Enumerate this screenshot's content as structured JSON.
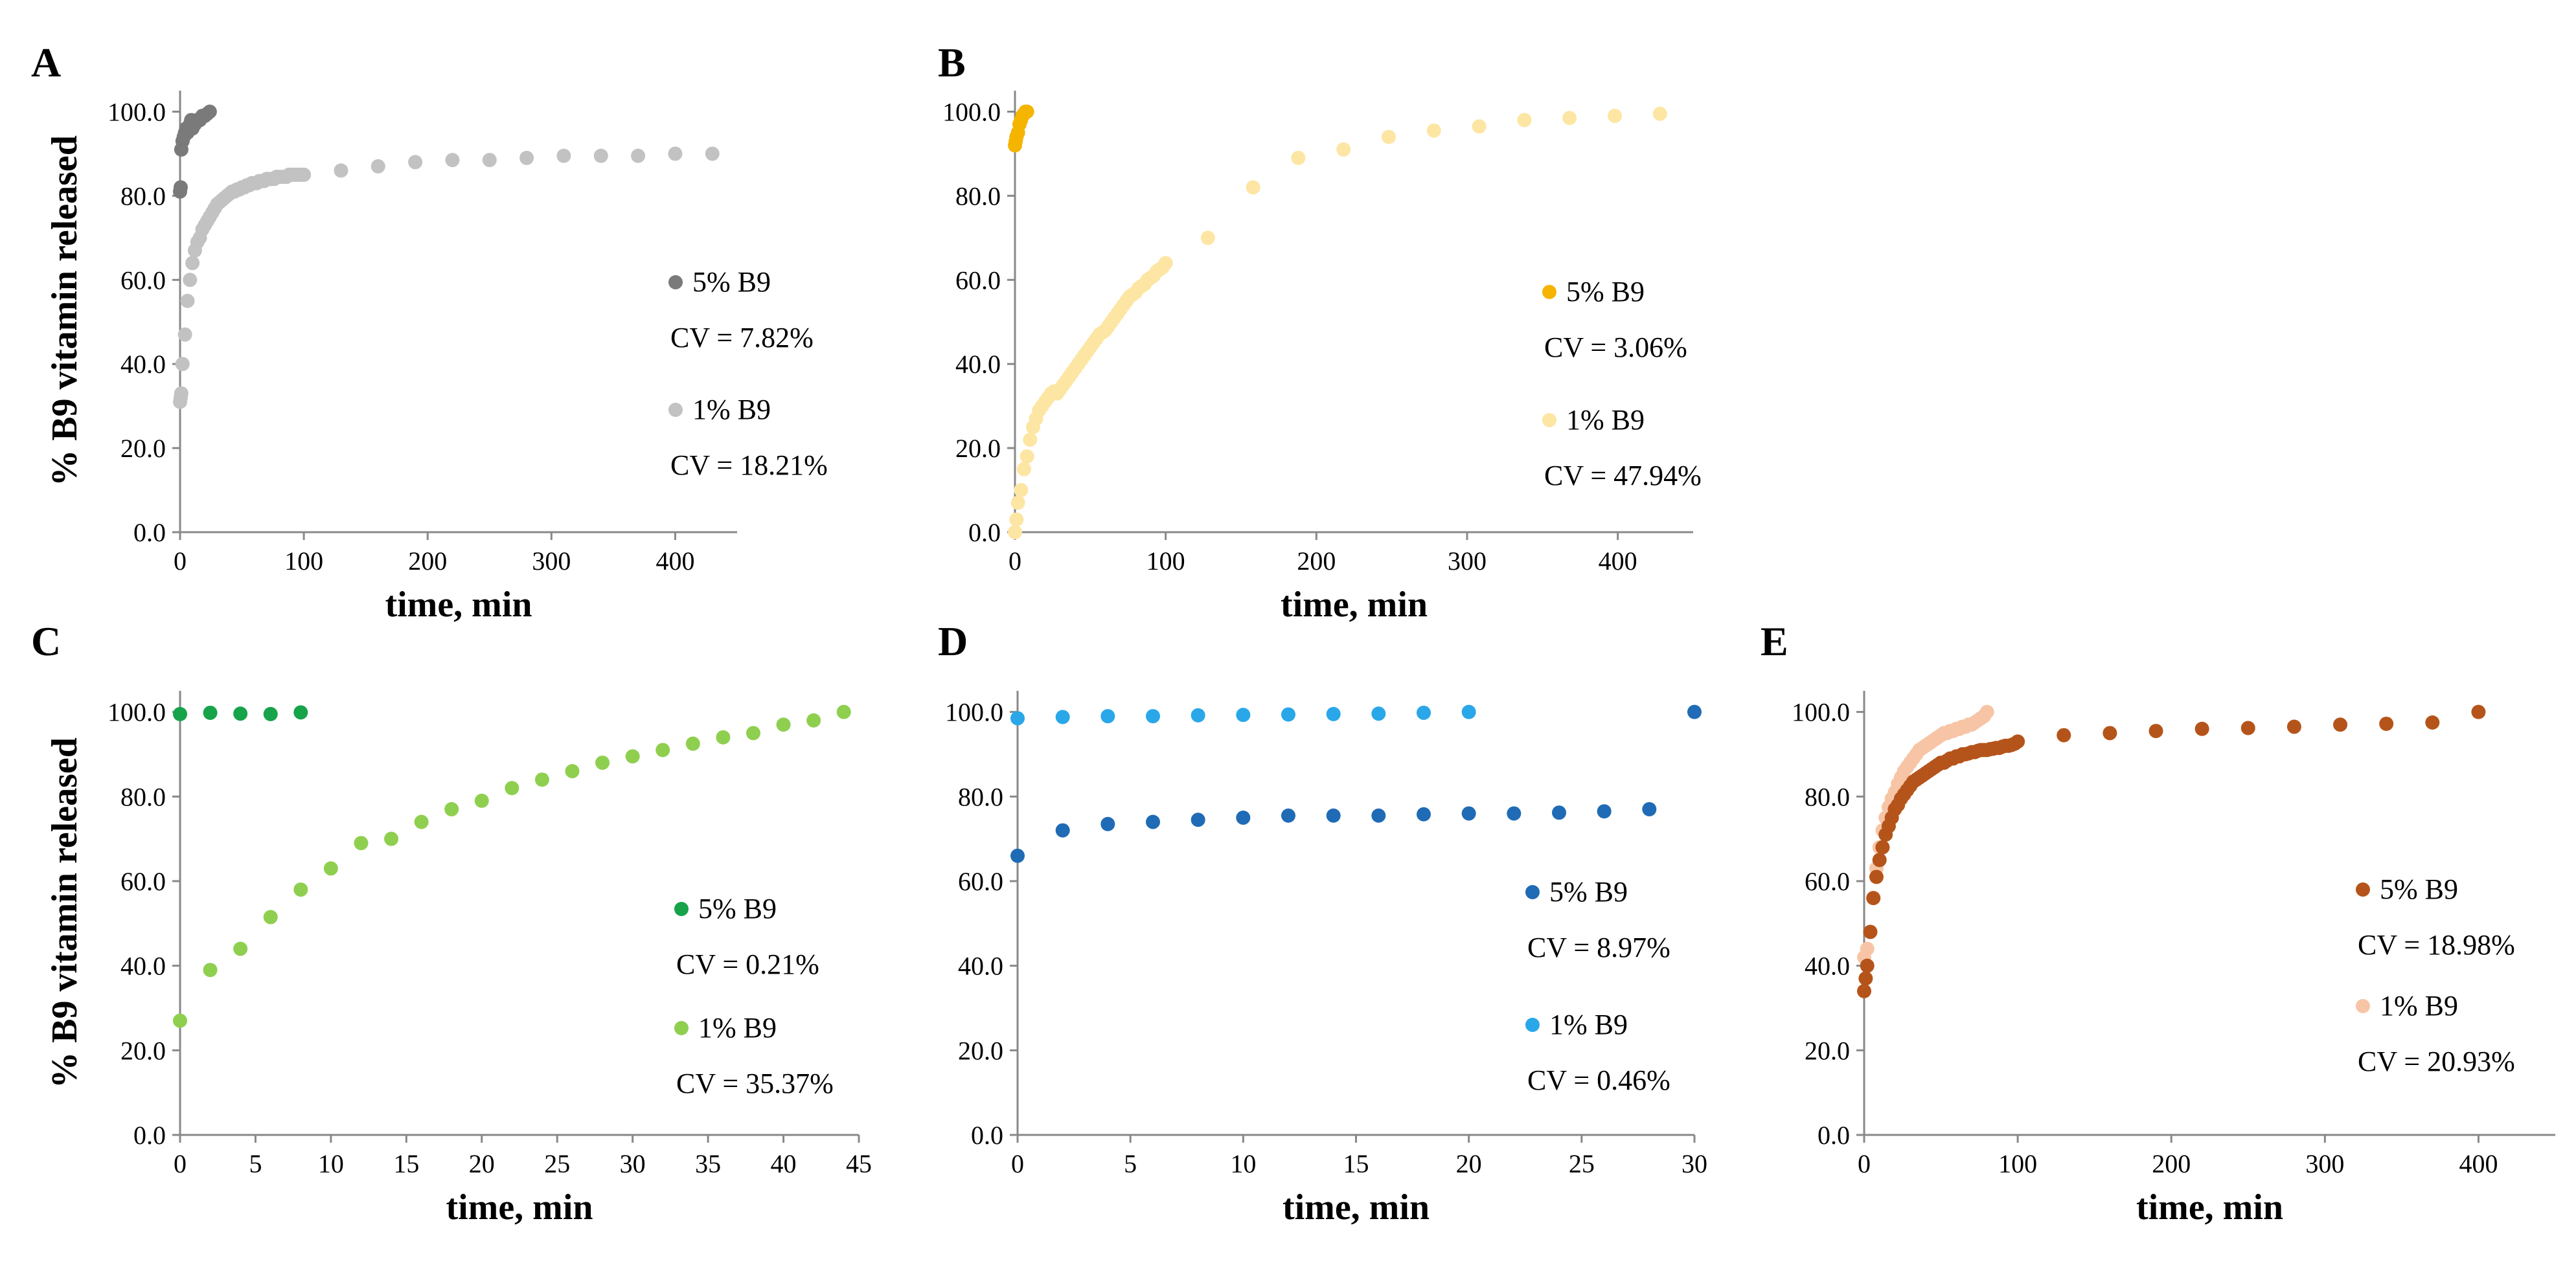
{
  "colors": {
    "A5": "#7a7a7a",
    "A1": "#c2c2c2",
    "B5": "#f5b400",
    "B1": "#fde6a3",
    "C5": "#17a34a",
    "C1": "#8fcf4f",
    "D5": "#1f6bb5",
    "D1": "#29a7e8",
    "E5": "#b5541a",
    "E1": "#f7c5a6"
  },
  "chart_data": [
    {
      "panel": "A",
      "type": "scatter",
      "xlabel": "time, min",
      "ylabel": "% B9 vitamin released",
      "xlim": [
        0,
        450
      ],
      "ylim": [
        0,
        105
      ],
      "xticks": [
        0,
        100,
        200,
        300,
        400
      ],
      "yticks": [
        "0.0",
        "20.0",
        "40.0",
        "60.0",
        "80.0",
        "100.0"
      ],
      "legend": [
        {
          "label": "5% B9",
          "cv": "CV = 7.82%"
        },
        {
          "label": "1% B9",
          "cv": "CV = 18.21%"
        }
      ],
      "series": [
        {
          "name": "5% B9",
          "color_key": "A5",
          "x": [
            0,
            0.5,
            1,
            2,
            3,
            4,
            5,
            6,
            7,
            8,
            9,
            10,
            12,
            14,
            16,
            18,
            20,
            22,
            24
          ],
          "y": [
            81,
            82,
            91,
            93,
            94,
            95,
            96,
            95,
            96,
            97,
            98,
            96,
            97,
            98,
            98,
            99,
            99,
            99.5,
            100
          ]
        },
        {
          "name": "1% B9",
          "color_key": "A1",
          "x": [
            0,
            0.5,
            1,
            2,
            4,
            6,
            8,
            10,
            12,
            14,
            16,
            18,
            20,
            22,
            24,
            26,
            28,
            30,
            32,
            34,
            36,
            38,
            40,
            42,
            44,
            46,
            48,
            50,
            52,
            54,
            56,
            58,
            60,
            62,
            64,
            66,
            68,
            70,
            72,
            74,
            76,
            78,
            80,
            82,
            84,
            86,
            88,
            90,
            92,
            94,
            96,
            98,
            100,
            130,
            160,
            190,
            220,
            250,
            280,
            310,
            340,
            370,
            400,
            430
          ],
          "y": [
            31,
            32,
            33,
            40,
            47,
            55,
            60,
            64,
            67,
            69,
            70,
            72,
            73,
            74,
            75,
            76,
            77,
            78,
            78.5,
            79,
            79.5,
            80,
            80.5,
            81,
            81,
            81.5,
            81.5,
            82,
            82,
            82.5,
            82.5,
            83,
            83,
            83,
            83.5,
            83.5,
            83.5,
            84,
            84,
            84,
            84,
            84.5,
            84.5,
            84.5,
            84.5,
            84.5,
            85,
            85,
            85,
            85,
            85,
            85,
            85,
            86,
            87,
            88,
            88.5,
            88.5,
            89,
            89.5,
            89.5,
            89.5,
            90,
            90
          ]
        }
      ]
    },
    {
      "panel": "B",
      "type": "scatter",
      "xlabel": "time, min",
      "ylabel": "",
      "xlim": [
        0,
        450
      ],
      "ylim": [
        0,
        105
      ],
      "xticks": [
        0,
        100,
        200,
        300,
        400
      ],
      "yticks": [
        "0.0",
        "20.0",
        "40.0",
        "60.0",
        "80.0",
        "100.0"
      ],
      "legend": [
        {
          "label": "5% B9",
          "cv": "CV = 3.06%"
        },
        {
          "label": "1% B9",
          "cv": "CV = 47.94%"
        }
      ],
      "series": [
        {
          "name": "5% B9",
          "color_key": "B5",
          "x": [
            0,
            0.5,
            1,
            2,
            3,
            4,
            5,
            6,
            7,
            8
          ],
          "y": [
            92,
            93,
            94,
            95,
            97,
            98,
            99,
            99.5,
            100,
            100
          ]
        },
        {
          "name": "1% B9",
          "color_key": "B1",
          "x": [
            0,
            1,
            2,
            4,
            6,
            8,
            10,
            12,
            14,
            16,
            18,
            20,
            22,
            24,
            26,
            28,
            30,
            32,
            34,
            36,
            38,
            40,
            42,
            44,
            46,
            48,
            50,
            52,
            54,
            56,
            58,
            60,
            62,
            64,
            66,
            68,
            70,
            72,
            74,
            76,
            78,
            80,
            82,
            84,
            86,
            88,
            90,
            92,
            94,
            96,
            98,
            100,
            128,
            158,
            188,
            218,
            248,
            278,
            308,
            338,
            368,
            398,
            428
          ],
          "y": [
            0,
            3,
            7,
            10,
            15,
            18,
            22,
            25,
            27,
            29,
            30,
            31,
            32,
            33,
            33.5,
            33,
            34,
            35,
            36,
            37,
            38,
            39,
            40,
            41,
            42,
            43,
            44,
            45,
            46,
            47,
            47.5,
            48,
            49,
            50,
            51,
            52,
            53,
            54,
            55,
            56,
            56.5,
            57,
            58,
            58.5,
            59,
            60,
            60.5,
            61,
            62,
            62.5,
            63,
            64,
            70,
            82,
            89,
            91,
            94,
            95.5,
            96.5,
            98,
            98.5,
            99,
            99.5
          ]
        }
      ]
    },
    {
      "panel": "C",
      "type": "scatter",
      "xlabel": "time, min",
      "ylabel": "% B9 vitamin released",
      "xlim": [
        0,
        45
      ],
      "ylim": [
        0,
        105
      ],
      "xticks": [
        0,
        5,
        10,
        15,
        20,
        25,
        30,
        35,
        40,
        45
      ],
      "yticks": [
        "0.0",
        "20.0",
        "40.0",
        "60.0",
        "80.0",
        "100.0"
      ],
      "legend": [
        {
          "label": "5% B9",
          "cv": "CV = 0.21%"
        },
        {
          "label": "1% B9",
          "cv": "CV = 35.37%"
        }
      ],
      "series": [
        {
          "name": "5% B9",
          "color_key": "C5",
          "x": [
            0,
            2,
            4,
            6,
            8
          ],
          "y": [
            99.5,
            99.8,
            99.6,
            99.5,
            99.9
          ]
        },
        {
          "name": "1% B9",
          "color_key": "C1",
          "x": [
            0,
            2,
            4,
            6,
            8,
            10,
            12,
            14,
            16,
            18,
            20,
            22,
            24,
            26,
            28,
            30,
            32,
            34,
            36,
            38,
            40,
            42,
            44
          ],
          "y": [
            27,
            39,
            44,
            51.5,
            58,
            63,
            69,
            70,
            74,
            77,
            79,
            82,
            84,
            86,
            88,
            89.5,
            91,
            92.5,
            94,
            95,
            97,
            98,
            100
          ]
        }
      ]
    },
    {
      "panel": "D",
      "type": "scatter",
      "xlabel": "time, min",
      "ylabel": "",
      "xlim": [
        0,
        30
      ],
      "ylim": [
        0,
        105
      ],
      "xticks": [
        0,
        5,
        10,
        15,
        20,
        25,
        30
      ],
      "yticks": [
        "0.0",
        "20.0",
        "40.0",
        "60.0",
        "80.0",
        "100.0"
      ],
      "legend": [
        {
          "label": "5% B9",
          "cv": "CV = 8.97%"
        },
        {
          "label": "1% B9",
          "cv": "CV = 0.46%"
        }
      ],
      "series": [
        {
          "name": "5% B9",
          "color_key": "D5",
          "x": [
            0,
            2,
            4,
            6,
            8,
            10,
            12,
            14,
            16,
            18,
            20,
            22,
            24,
            26,
            28,
            30
          ],
          "y": [
            66,
            72,
            73.5,
            74,
            74.5,
            75,
            75.5,
            75.5,
            75.5,
            75.8,
            76,
            76,
            76.2,
            76.5,
            77,
            100
          ]
        },
        {
          "name": "1% B9",
          "color_key": "D1",
          "x": [
            0,
            2,
            4,
            6,
            8,
            10,
            12,
            14,
            16,
            18,
            20
          ],
          "y": [
            98.5,
            98.8,
            99,
            99,
            99.2,
            99.3,
            99.4,
            99.5,
            99.6,
            99.8,
            100
          ]
        }
      ]
    },
    {
      "panel": "E",
      "type": "scatter",
      "xlabel": "time, min",
      "ylabel": "",
      "xlim": [
        0,
        450
      ],
      "ylim": [
        0,
        105
      ],
      "xticks": [
        0,
        100,
        200,
        300,
        400
      ],
      "yticks": [
        "0.0",
        "20.0",
        "40.0",
        "60.0",
        "80.0",
        "100.0"
      ],
      "legend": [
        {
          "label": "5% B9",
          "cv": "CV = 18.98%"
        },
        {
          "label": "1% B9",
          "cv": "CV = 20.93%"
        }
      ],
      "series": [
        {
          "name": "5% B9",
          "color_key": "E5",
          "x": [
            0,
            1,
            2,
            4,
            6,
            8,
            10,
            12,
            14,
            16,
            18,
            20,
            22,
            24,
            26,
            28,
            30,
            32,
            34,
            36,
            38,
            40,
            42,
            44,
            46,
            48,
            50,
            52,
            54,
            56,
            58,
            60,
            62,
            64,
            66,
            68,
            70,
            72,
            74,
            76,
            78,
            80,
            82,
            84,
            86,
            88,
            90,
            92,
            94,
            96,
            98,
            100,
            130,
            160,
            190,
            220,
            250,
            280,
            310,
            340,
            370,
            400
          ],
          "y": [
            34,
            37,
            40,
            48,
            56,
            61,
            65,
            68,
            71,
            73,
            75,
            77,
            78,
            79.5,
            80.5,
            81.5,
            82.5,
            83.5,
            84,
            84.5,
            85,
            85.5,
            86,
            86.5,
            87,
            87.5,
            88,
            88,
            88.5,
            89,
            89,
            89.5,
            89.5,
            90,
            90,
            90.2,
            90.5,
            90.5,
            90.8,
            91,
            91,
            91,
            91.2,
            91.3,
            91.5,
            91.5,
            91.8,
            92,
            92,
            92.2,
            92.5,
            93,
            94.5,
            95,
            95.5,
            96,
            96.2,
            96.5,
            97,
            97.2,
            97.5,
            100
          ]
        },
        {
          "name": "1% B9",
          "color_key": "E1",
          "x": [
            0,
            2,
            4,
            6,
            8,
            10,
            12,
            14,
            16,
            18,
            20,
            22,
            24,
            26,
            28,
            30,
            32,
            34,
            36,
            38,
            40,
            42,
            44,
            46,
            48,
            50,
            52,
            54,
            56,
            58,
            60,
            62,
            64,
            66,
            68,
            70,
            72,
            74,
            76,
            78,
            80
          ],
          "y": [
            42,
            44,
            48,
            56,
            63,
            68,
            72,
            75,
            77.5,
            79.5,
            81,
            83,
            84.5,
            86,
            87,
            88,
            89,
            90,
            91,
            91.5,
            92,
            92.5,
            93,
            93.5,
            94,
            94.5,
            95,
            95,
            95.5,
            95.5,
            96,
            96,
            96.5,
            96.5,
            97,
            97,
            97.5,
            98,
            98.5,
            99,
            100
          ]
        }
      ]
    }
  ]
}
